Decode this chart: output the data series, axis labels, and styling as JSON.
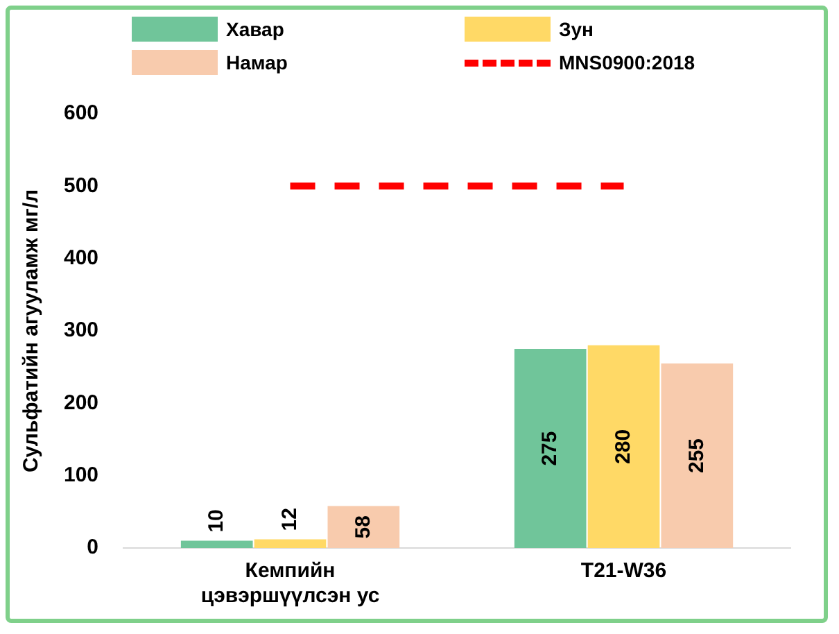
{
  "chart_data": {
    "type": "bar",
    "ylabel": "Сульфатийн агууламж мг/л",
    "categories": [
      "Кемпийн цэвэршүүлсэн ус",
      "T21-W36"
    ],
    "series": [
      {
        "name": "Хавар",
        "color": "#70c59a",
        "values": [
          10,
          275
        ],
        "value_labels": [
          "10",
          "275"
        ]
      },
      {
        "name": "Зун",
        "color": "#ffd966",
        "values": [
          12,
          280
        ],
        "value_labels": [
          "12",
          "280"
        ]
      },
      {
        "name": "Намар",
        "color": "#f8cbad",
        "values": [
          58,
          255
        ],
        "value_labels": [
          "58",
          "255"
        ]
      },
      {
        "name": "MNS0900:2018",
        "type": "line",
        "color": "#ff0000",
        "line_style": "dashed",
        "values": [
          500,
          500
        ]
      }
    ],
    "ylim": [
      0,
      600
    ],
    "yticks": [
      0,
      100,
      200,
      300,
      400,
      500,
      600
    ],
    "grid": false,
    "legend": "top"
  }
}
